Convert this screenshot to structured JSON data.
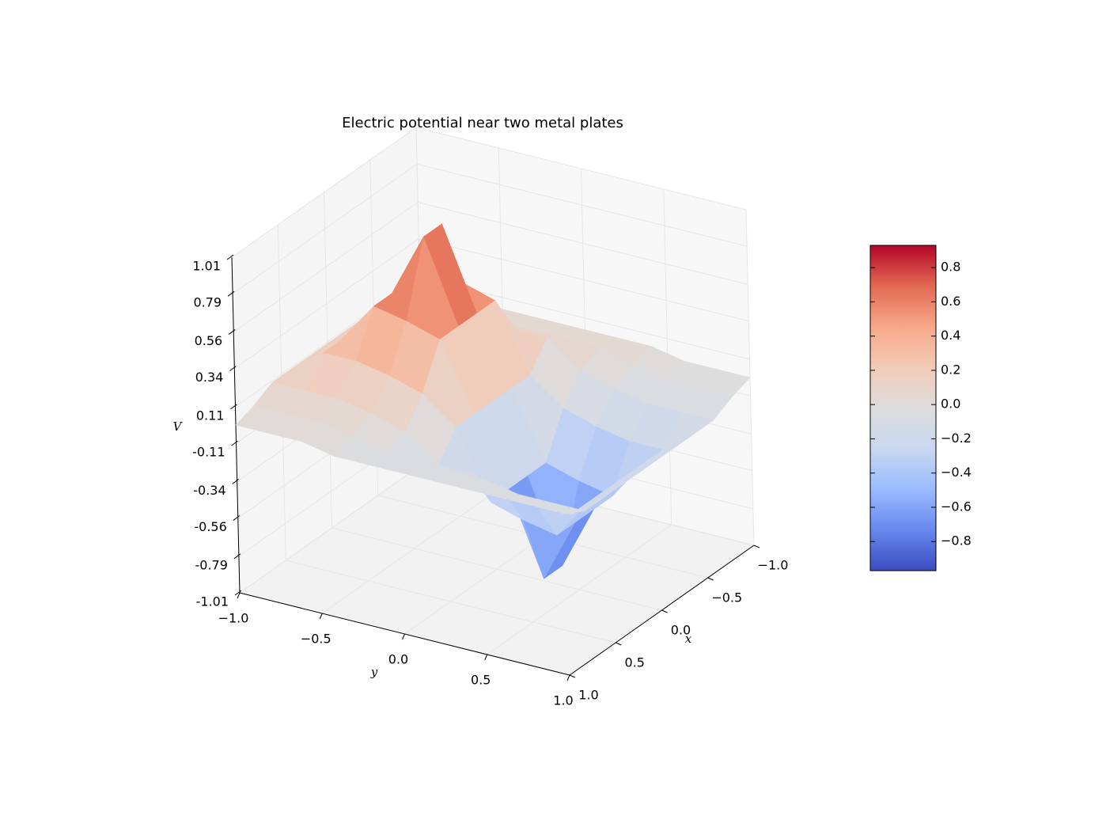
{
  "chart_data": {
    "type": "surface",
    "title": "Electric potential near two metal plates",
    "xlabel": "x",
    "ylabel": "y",
    "zlabel": "V",
    "x": [
      -1,
      -0.8,
      -0.6,
      -0.4,
      -0.2,
      0,
      0.2,
      0.4,
      0.6,
      0.8,
      1
    ],
    "y": [
      -1,
      -0.8,
      -0.6,
      -0.4,
      -0.2,
      0,
      0.2,
      0.4,
      0.6,
      0.8,
      1
    ],
    "z": [
      [
        0.04,
        0.1,
        0.1,
        0.1,
        0.1,
        0.1,
        0.1,
        0.1,
        0.1,
        0.04,
        0
      ],
      [
        0.04,
        0.1,
        0.25,
        0.25,
        0.25,
        0.25,
        0.25,
        0.25,
        0.1,
        0.04,
        0
      ],
      [
        0.04,
        0.1,
        0.25,
        0.5,
        0.5,
        0.5,
        0.5,
        0.25,
        0.1,
        0.04,
        0
      ],
      [
        0.04,
        0.06,
        0.21,
        0.46,
        0.89,
        0.89,
        0.46,
        0.21,
        0.06,
        0,
        -0.04
      ],
      [
        0.04,
        0.06,
        0.15,
        0.4,
        0.4,
        0.4,
        0.4,
        0.15,
        0,
        -0.06,
        -0.04
      ],
      [
        0.04,
        0.06,
        0.15,
        0,
        0,
        0,
        0,
        0,
        -0.15,
        -0.06,
        -0.04
      ],
      [
        0.04,
        0.06,
        0,
        -0.15,
        -0.4,
        -0.4,
        -0.4,
        -0.4,
        -0.15,
        -0.06,
        -0.04
      ],
      [
        0.04,
        0,
        -0.06,
        -0.21,
        -0.46,
        -0.89,
        -0.89,
        -0.46,
        -0.21,
        -0.06,
        -0.04
      ],
      [
        0,
        -0.04,
        -0.1,
        -0.25,
        -0.5,
        -0.5,
        -0.5,
        -0.5,
        -0.25,
        -0.1,
        -0.04
      ],
      [
        0,
        -0.04,
        -0.1,
        -0.25,
        -0.25,
        -0.25,
        -0.25,
        -0.25,
        -0.25,
        -0.1,
        -0.04
      ],
      [
        0,
        -0.04,
        -0.1,
        -0.1,
        -0.1,
        -0.1,
        -0.1,
        -0.1,
        -0.1,
        -0.1,
        -0.04
      ]
    ],
    "xlim": [
      -1,
      1
    ],
    "ylim": [
      -1,
      1
    ],
    "zlim": [
      -1.01,
      1.01
    ],
    "xticks": [
      {
        "value": -1,
        "label": "−1.0"
      },
      {
        "value": -0.5,
        "label": "−0.5"
      },
      {
        "value": 0,
        "label": "0.0"
      },
      {
        "value": 0.5,
        "label": "0.5"
      },
      {
        "value": 1,
        "label": "1.0"
      }
    ],
    "yticks": [
      {
        "value": -1,
        "label": "−1.0"
      },
      {
        "value": -0.5,
        "label": "−0.5"
      },
      {
        "value": 0,
        "label": "0.0"
      },
      {
        "value": 0.5,
        "label": "0.5"
      },
      {
        "value": 1,
        "label": "1.0"
      }
    ],
    "zticks": [
      -1.01,
      -0.79,
      -0.56,
      -0.34,
      -0.11,
      0.11,
      0.34,
      0.56,
      0.79,
      1.01
    ],
    "colormap": [
      "#3b4cc0",
      "#6788ee",
      "#9abbff",
      "#c9d7f0",
      "#dddddd",
      "#f2cbb7",
      "#f7a889",
      "#e26952",
      "#b40426"
    ],
    "vlim": [
      -0.97,
      0.93
    ],
    "colorbar_ticks": [
      {
        "value": -0.8,
        "label": "−0.8"
      },
      {
        "value": -0.6,
        "label": "−0.6"
      },
      {
        "value": -0.4,
        "label": "−0.4"
      },
      {
        "value": -0.2,
        "label": "−0.2"
      },
      {
        "value": 0,
        "label": "0.0"
      },
      0.2,
      0.4,
      0.6,
      0.8
    ],
    "grid": true
  }
}
